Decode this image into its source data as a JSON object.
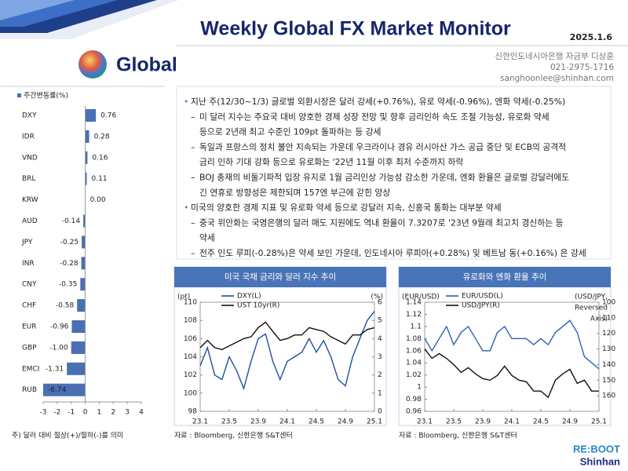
{
  "header": {
    "title": "Weekly Global FX Market Monitor",
    "date": "2025.1.6",
    "section": "Global",
    "author": [
      "신한인도네시아은행 자금부 디상훈",
      "021-2975-1716",
      "sanghoonlee@shinhan.com"
    ]
  },
  "summary": [
    {
      "marker": "•",
      "lines": [
        "지난 주(12/30~1/3) 글로벌 외환시장은 달러  강세(+0.76%), 유로 약세(-0.96%), 엔화 약세(-0.25%)"
      ]
    },
    {
      "marker": "–",
      "lines": [
        "미 달러 지수는 주요국 대비 양호한 경제 성장 전망 및 향후 금리인하 속도 조절 가능성,  유로화 약세",
        "등으로 2년래 최고 수준인 109pt 돌파하는 등 강세"
      ]
    },
    {
      "marker": "–",
      "lines": [
        "독일과 프랑스의 정치 불안 지속되는 가운데 우크라이나 경유 러시아산 가스 공급 중단 및 ECB의 공격적",
        "금리 인하 기대 강화 등으로 유로화는 '22년 11월 이후 최저 수준까지 하락"
      ]
    },
    {
      "marker": "–",
      "lines": [
        "BOJ 총재의 비둘기파적 입장 유지로 1월 금리인상 가능성 감소한 가운데,  엔화 환율은 글로벌 강달러에도",
        "긴 연휴로 방향성은 제한되며 157엔 부근에 갇힌 양상"
      ]
    },
    {
      "marker": "•",
      "lines": [
        "미국의 양호한 경제 지표 및 유로화 약세 등으로 강달러 지속, 신흥국 통화는 대부분 약세"
      ]
    },
    {
      "marker": "–",
      "lines": [
        "중국 위안화는 국영은행의 달러 매도 지원에도 역내 환율이 7.3207로 '23년 9월래 최고치 경신하는 등",
        "약세"
      ]
    },
    {
      "marker": "–",
      "lines": [
        "전주 인도 루피(-0.28%)은 약세 보인 가운데, 인도네시아 루피아(+0.28%) 및 베트남 동(+0.16%) 은 강세"
      ]
    }
  ],
  "chart_data": [
    {
      "type": "bar",
      "orientation": "horizontal",
      "legend": "주간변동률(%)",
      "color": "#4a6fb5",
      "categories": [
        "DXY",
        "IDR",
        "VND",
        "BRL",
        "KRW",
        "AUD",
        "JPY",
        "INR",
        "CNY",
        "CHF",
        "EUR",
        "GBP",
        "EMCI",
        "RUB"
      ],
      "values": [
        0.76,
        0.28,
        0.16,
        0.11,
        0,
        -0.14,
        -0.25,
        -0.28,
        -0.35,
        -0.58,
        -0.96,
        -1,
        -1.31,
        -6.74
      ],
      "value_labels": [
        "0.76",
        "0.28",
        "0.16",
        "0.11",
        "0.00",
        "-0.14",
        "-0.25",
        "-0.28",
        "-0.35",
        "-0.58",
        "-0.96",
        "-1.00",
        "-1.31",
        "-6.74"
      ],
      "xlim": [
        -3,
        4
      ],
      "xticks": [
        -3,
        -2,
        -1,
        0,
        1,
        2,
        3,
        4
      ],
      "note": "주) 달러 대비 절상(+)/절하(-)를 의미"
    },
    {
      "type": "line",
      "title": "미국 국채 금리와 달러 지수 추이",
      "ylabel": "(pt)",
      "y2label": [
        "(%)"
      ],
      "categories": [
        "23.1",
        null,
        null,
        null,
        "23.5",
        null,
        null,
        null,
        "23.9",
        null,
        null,
        null,
        "24.1",
        null,
        null,
        null,
        "24.5",
        null,
        null,
        null,
        "24.9",
        null,
        null,
        null,
        "25.1"
      ],
      "series": [
        {
          "name": "DXY(L)",
          "color": "#1f4fa0",
          "axis": "y",
          "values": [
            103,
            105,
            102,
            101.5,
            104,
            102.5,
            100.5,
            103.5,
            106,
            106.5,
            103.5,
            101.5,
            103.5,
            104,
            104.5,
            106,
            104.5,
            105.8,
            104,
            101.5,
            100.8,
            104,
            106,
            108,
            109
          ]
        },
        {
          "name": "UST 10yr(R)",
          "color": "#111111",
          "axis": "y2",
          "values": [
            3.5,
            3.9,
            3.5,
            3.4,
            3.6,
            3.8,
            4,
            4.1,
            4.6,
            4.9,
            4.4,
            3.9,
            4,
            4.2,
            4.2,
            4.6,
            4.5,
            4.4,
            4.1,
            3.9,
            3.7,
            4.2,
            4.2,
            4.5,
            4.6
          ]
        }
      ],
      "ylim": [
        98,
        110
      ],
      "yticks": [
        98,
        100,
        102,
        104,
        106,
        108,
        110
      ],
      "y2lim": [
        0,
        6
      ],
      "y2ticks": [
        0,
        1,
        2,
        3,
        4,
        5,
        6
      ],
      "source": "자료 : Bloomberg, 신한은행 S&T센터"
    },
    {
      "type": "line",
      "title": "유로화와 엔화 환율 추이",
      "ylabel": "(EUR/USD)",
      "y2label": [
        "(USD/JPY,",
        "Reversed",
        "Axis)"
      ],
      "categories": [
        "23.1",
        null,
        null,
        null,
        "23.5",
        null,
        null,
        null,
        "23.9",
        null,
        null,
        null,
        "24.1",
        null,
        null,
        null,
        "24.5",
        null,
        null,
        null,
        "24.9",
        null,
        null,
        null,
        "25.1"
      ],
      "series": [
        {
          "name": "EUR/USD(L)",
          "color": "#2c5fb3",
          "axis": "y",
          "values": [
            1.08,
            1.06,
            1.08,
            1.1,
            1.07,
            1.09,
            1.1,
            1.08,
            1.06,
            1.06,
            1.09,
            1.1,
            1.08,
            1.08,
            1.08,
            1.07,
            1.08,
            1.07,
            1.09,
            1.1,
            1.11,
            1.09,
            1.05,
            1.04,
            1.03
          ]
        },
        {
          "name": "USD/JPY(R)",
          "color": "#111111",
          "axis": "y2",
          "values": [
            130,
            136,
            133,
            136,
            140,
            145,
            142,
            146,
            149,
            150,
            147,
            141,
            147,
            150,
            151,
            157,
            157,
            161,
            150,
            146,
            143,
            152,
            150,
            157,
            157
          ]
        }
      ],
      "ylim": [
        0.96,
        1.14
      ],
      "yticks": [
        0.96,
        0.98,
        1,
        1.02,
        1.04,
        1.06,
        1.08,
        1.1,
        1.12,
        1.14
      ],
      "y2lim": [
        170,
        100
      ],
      "y2ticks": [
        100,
        110,
        120,
        130,
        140,
        150,
        160
      ],
      "source": "자료 : Bloomberg, 신한은행 S&T센터"
    }
  ],
  "footer": {
    "logo_top": "RE:BOOT",
    "logo_bottom": "Shinhan"
  }
}
